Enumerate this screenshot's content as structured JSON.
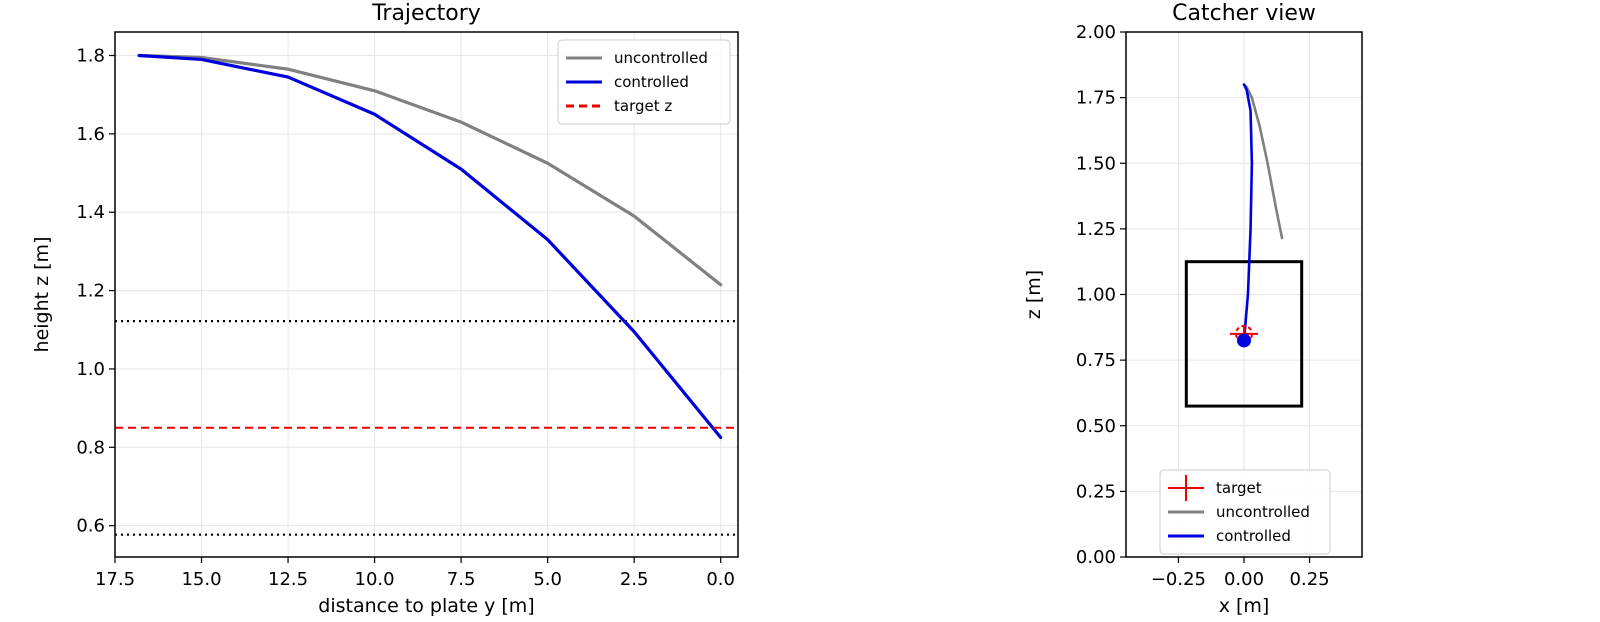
{
  "chart_data": [
    {
      "type": "line",
      "title": "Trajectory",
      "xlabel": "distance to plate y [m]",
      "ylabel": "height z [m]",
      "xlim": [
        17.5,
        -0.5
      ],
      "ylim": [
        0.52,
        1.86
      ],
      "x_ticks": [
        17.5,
        15.0,
        12.5,
        10.0,
        7.5,
        5.0,
        2.5,
        0.0
      ],
      "x_tick_labels": [
        "17.5",
        "15.0",
        "12.5",
        "10.0",
        "7.5",
        "5.0",
        "2.5",
        "0.0"
      ],
      "y_ticks": [
        0.6,
        0.8,
        1.0,
        1.2,
        1.4,
        1.6,
        1.8
      ],
      "y_tick_labels": [
        "0.6",
        "0.8",
        "1.0",
        "1.2",
        "1.4",
        "1.6",
        "1.8"
      ],
      "grid": true,
      "legend_position": "top-right",
      "series": [
        {
          "name": "uncontrolled",
          "color": "#808080",
          "style": "solid",
          "x": [
            16.8,
            15.0,
            12.5,
            10.0,
            7.5,
            5.0,
            2.5,
            0.0
          ],
          "y": [
            1.8,
            1.795,
            1.765,
            1.71,
            1.63,
            1.525,
            1.39,
            1.215
          ]
        },
        {
          "name": "controlled",
          "color": "#0000dd",
          "style": "solid",
          "x": [
            16.8,
            15.0,
            12.5,
            10.0,
            7.5,
            5.0,
            2.5,
            0.0
          ],
          "y": [
            1.8,
            1.79,
            1.745,
            1.65,
            1.51,
            1.33,
            1.095,
            0.825
          ]
        },
        {
          "name": "target z",
          "color": "#ee0000",
          "style": "dashed",
          "y_constant": 0.85
        }
      ],
      "reference_lines": [
        {
          "y": 1.122,
          "color": "#000000",
          "style": "dotted"
        },
        {
          "y": 0.577,
          "color": "#000000",
          "style": "dotted"
        }
      ]
    },
    {
      "type": "line",
      "title": "Catcher view",
      "xlabel": "x [m]",
      "ylabel": "z [m]",
      "xlim": [
        -0.45,
        0.45
      ],
      "ylim": [
        0.0,
        2.0
      ],
      "x_ticks": [
        -0.25,
        0.0,
        0.25
      ],
      "x_tick_labels": [
        "−0.25",
        "0.00",
        "0.25"
      ],
      "y_ticks": [
        0.0,
        0.25,
        0.5,
        0.75,
        1.0,
        1.25,
        1.5,
        1.75,
        2.0
      ],
      "y_tick_labels": [
        "0.00",
        "0.25",
        "0.50",
        "0.75",
        "1.00",
        "1.25",
        "1.50",
        "1.75",
        "2.00"
      ],
      "grid": true,
      "legend_position": "bottom-center",
      "strike_zone": {
        "x": [
          -0.22,
          0.22
        ],
        "z": [
          0.575,
          1.125
        ],
        "color": "#000000"
      },
      "target": {
        "name": "target",
        "x": 0.0,
        "z": 0.85,
        "color": "#ee0000"
      },
      "final_ball": {
        "x": 0.0,
        "z": 0.825,
        "color": "#0000dd"
      },
      "series": [
        {
          "name": "uncontrolled",
          "color": "#808080",
          "x": [
            0.0,
            0.01,
            0.03,
            0.06,
            0.09,
            0.12,
            0.145
          ],
          "z": [
            1.8,
            1.79,
            1.75,
            1.64,
            1.5,
            1.34,
            1.215
          ]
        },
        {
          "name": "controlled",
          "color": "#0000dd",
          "x": [
            0.0,
            0.01,
            0.025,
            0.03,
            0.025,
            0.015,
            0.0
          ],
          "z": [
            1.8,
            1.78,
            1.7,
            1.5,
            1.25,
            1.0,
            0.825
          ]
        }
      ]
    }
  ]
}
